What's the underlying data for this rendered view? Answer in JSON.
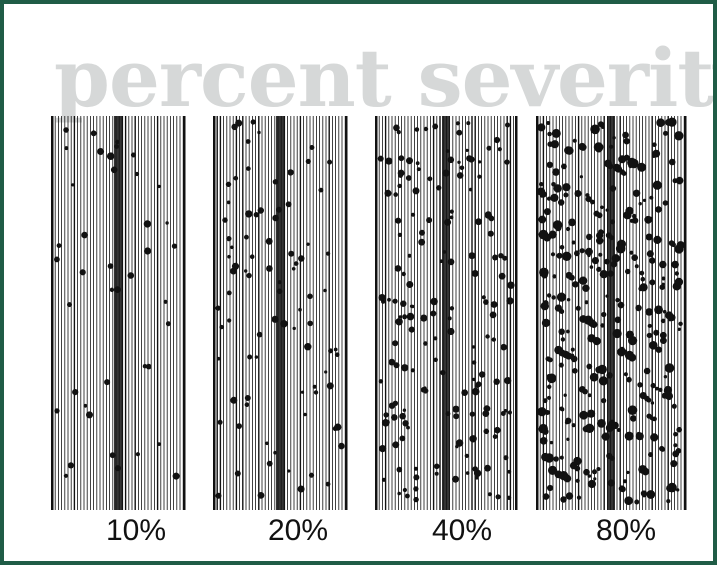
{
  "title": "percent severity",
  "panels": [
    {
      "label": "10%",
      "severity": 10
    },
    {
      "label": "20%",
      "severity": 20
    },
    {
      "label": "40%",
      "severity": 40
    },
    {
      "label": "80%",
      "severity": 80
    }
  ],
  "colors": {
    "border": "#1f5c46",
    "title": "#d6d8d8",
    "ink": "#111111",
    "background": "#ffffff"
  }
}
